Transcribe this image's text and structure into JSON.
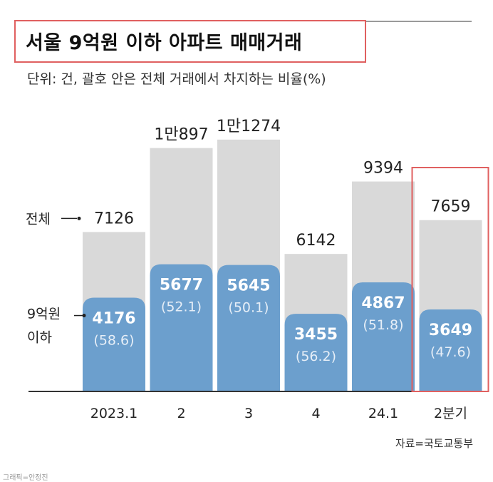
{
  "header": {
    "title": "서울 9억원 이하 아파트 매매거래",
    "subtitle": "단위: 건, 괄호 안은 전체 거래에서 차지하는 비율(%)"
  },
  "footer": {
    "source": "자료=국토교통부",
    "credit": "그래픽=안정진"
  },
  "colors": {
    "total_bar": "#d9d9d9",
    "subset_bar": "#6c9fcd",
    "highlight_border": "#e06060",
    "axis": "#333333",
    "subset_label": "#ffffff",
    "share_label": "#e6eef7"
  },
  "chart_data": {
    "type": "bar",
    "subtitle": "단위: 건, 괄호 안은 전체 거래에서 차지하는 비율(%)",
    "categories": [
      "2023.1",
      "2",
      "3",
      "4",
      "24.1",
      "2분기"
    ],
    "series": [
      {
        "name": "전체",
        "values": [
          7126,
          10897,
          11274,
          6142,
          9394,
          7659
        ],
        "labels": [
          "7126",
          "1만897",
          "1만1274",
          "6142",
          "9394",
          "7659"
        ]
      },
      {
        "name": "9억원 이하",
        "values": [
          4176,
          5677,
          5645,
          3455,
          4867,
          3649
        ],
        "labels": [
          "4176",
          "5677",
          "5645",
          "3455",
          "4867",
          "3649"
        ],
        "share_percent": [
          58.6,
          52.1,
          50.1,
          56.2,
          51.8,
          47.6
        ],
        "share_labels": [
          "(58.6)",
          "(52.1)",
          "(50.1)",
          "(56.2)",
          "(51.8)",
          "(47.6)"
        ]
      }
    ],
    "legend": {
      "total": "전체",
      "subset_line1": "9억원",
      "subset_line2": "이하"
    },
    "highlighted_category": "2분기",
    "ylim": [
      0,
      11300
    ],
    "grid": false
  }
}
